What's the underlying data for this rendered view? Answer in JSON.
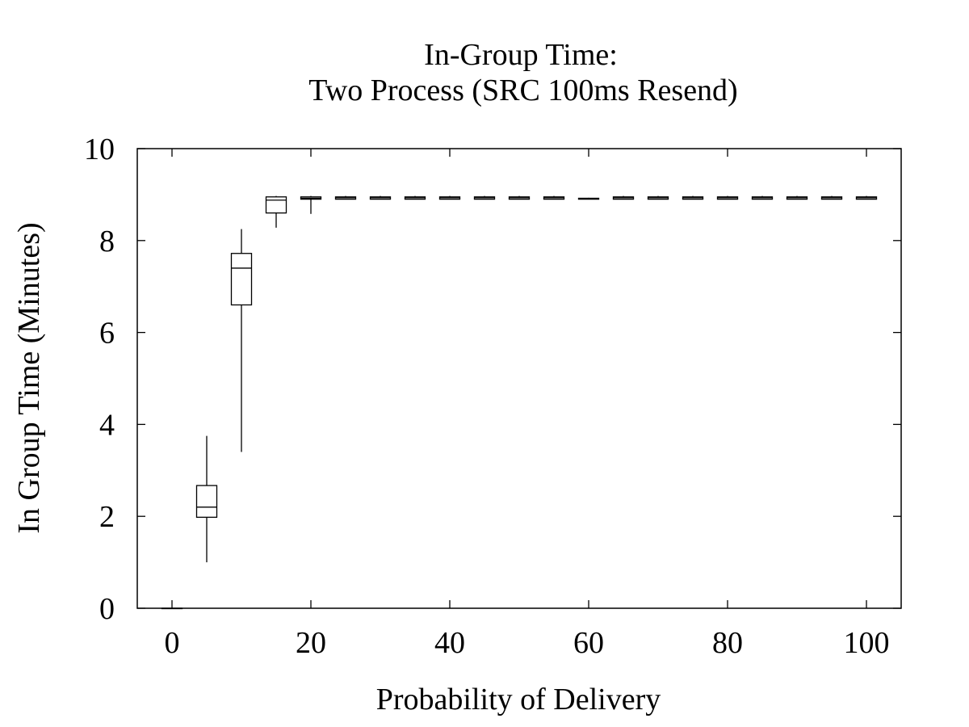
{
  "chart_data": {
    "type": "box",
    "title": [
      "In-Group Time:",
      "Two Process (SRC 100ms Resend)"
    ],
    "xlabel": "Probability of Delivery",
    "ylabel": "In Group Time (Minutes)",
    "xlim": [
      -5,
      105
    ],
    "ylim": [
      0,
      10
    ],
    "xticks": [
      0,
      20,
      40,
      60,
      80,
      100
    ],
    "yticks": [
      0,
      2,
      4,
      6,
      8,
      10
    ],
    "grid": false,
    "boxes": [
      {
        "x": 0,
        "whisker_low": 0.0,
        "q1": 0.0,
        "median": 0.0,
        "q3": 0.0,
        "whisker_high": 0.0
      },
      {
        "x": 5,
        "whisker_low": 1.0,
        "q1": 1.98,
        "median": 2.2,
        "q3": 2.67,
        "whisker_high": 3.75
      },
      {
        "x": 10,
        "whisker_low": 3.4,
        "q1": 6.6,
        "median": 7.4,
        "q3": 7.72,
        "whisker_high": 8.25
      },
      {
        "x": 15,
        "whisker_low": 8.28,
        "q1": 8.6,
        "median": 8.88,
        "q3": 8.95,
        "whisker_high": 8.97
      },
      {
        "x": 20,
        "whisker_low": 8.58,
        "q1": 8.9,
        "median": 8.92,
        "q3": 8.95,
        "whisker_high": 8.97
      },
      {
        "x": 25,
        "whisker_low": 8.9,
        "q1": 8.9,
        "median": 8.93,
        "q3": 8.95,
        "whisker_high": 8.97
      },
      {
        "x": 30,
        "whisker_low": 8.9,
        "q1": 8.9,
        "median": 8.93,
        "q3": 8.95,
        "whisker_high": 8.97
      },
      {
        "x": 35,
        "whisker_low": 8.9,
        "q1": 8.9,
        "median": 8.93,
        "q3": 8.95,
        "whisker_high": 8.97
      },
      {
        "x": 40,
        "whisker_low": 8.9,
        "q1": 8.9,
        "median": 8.93,
        "q3": 8.95,
        "whisker_high": 8.97
      },
      {
        "x": 45,
        "whisker_low": 8.9,
        "q1": 8.9,
        "median": 8.93,
        "q3": 8.95,
        "whisker_high": 8.97
      },
      {
        "x": 50,
        "whisker_low": 8.9,
        "q1": 8.9,
        "median": 8.93,
        "q3": 8.95,
        "whisker_high": 8.97
      },
      {
        "x": 55,
        "whisker_low": 8.9,
        "q1": 8.9,
        "median": 8.93,
        "q3": 8.95,
        "whisker_high": 8.97
      },
      {
        "x": 60,
        "whisker_low": 8.9,
        "q1": 8.9,
        "median": 8.91,
        "q3": 8.92,
        "whisker_high": 8.93
      },
      {
        "x": 65,
        "whisker_low": 8.9,
        "q1": 8.9,
        "median": 8.93,
        "q3": 8.95,
        "whisker_high": 8.97
      },
      {
        "x": 70,
        "whisker_low": 8.9,
        "q1": 8.9,
        "median": 8.93,
        "q3": 8.95,
        "whisker_high": 8.97
      },
      {
        "x": 75,
        "whisker_low": 8.9,
        "q1": 8.9,
        "median": 8.93,
        "q3": 8.95,
        "whisker_high": 8.97
      },
      {
        "x": 80,
        "whisker_low": 8.9,
        "q1": 8.9,
        "median": 8.93,
        "q3": 8.95,
        "whisker_high": 8.97
      },
      {
        "x": 85,
        "whisker_low": 8.9,
        "q1": 8.9,
        "median": 8.93,
        "q3": 8.95,
        "whisker_high": 8.97
      },
      {
        "x": 90,
        "whisker_low": 8.9,
        "q1": 8.9,
        "median": 8.93,
        "q3": 8.95,
        "whisker_high": 8.97
      },
      {
        "x": 95,
        "whisker_low": 8.9,
        "q1": 8.9,
        "median": 8.93,
        "q3": 8.95,
        "whisker_high": 8.97
      },
      {
        "x": 100,
        "whisker_low": 8.9,
        "q1": 8.9,
        "median": 8.93,
        "q3": 8.95,
        "whisker_high": 8.97
      }
    ]
  }
}
